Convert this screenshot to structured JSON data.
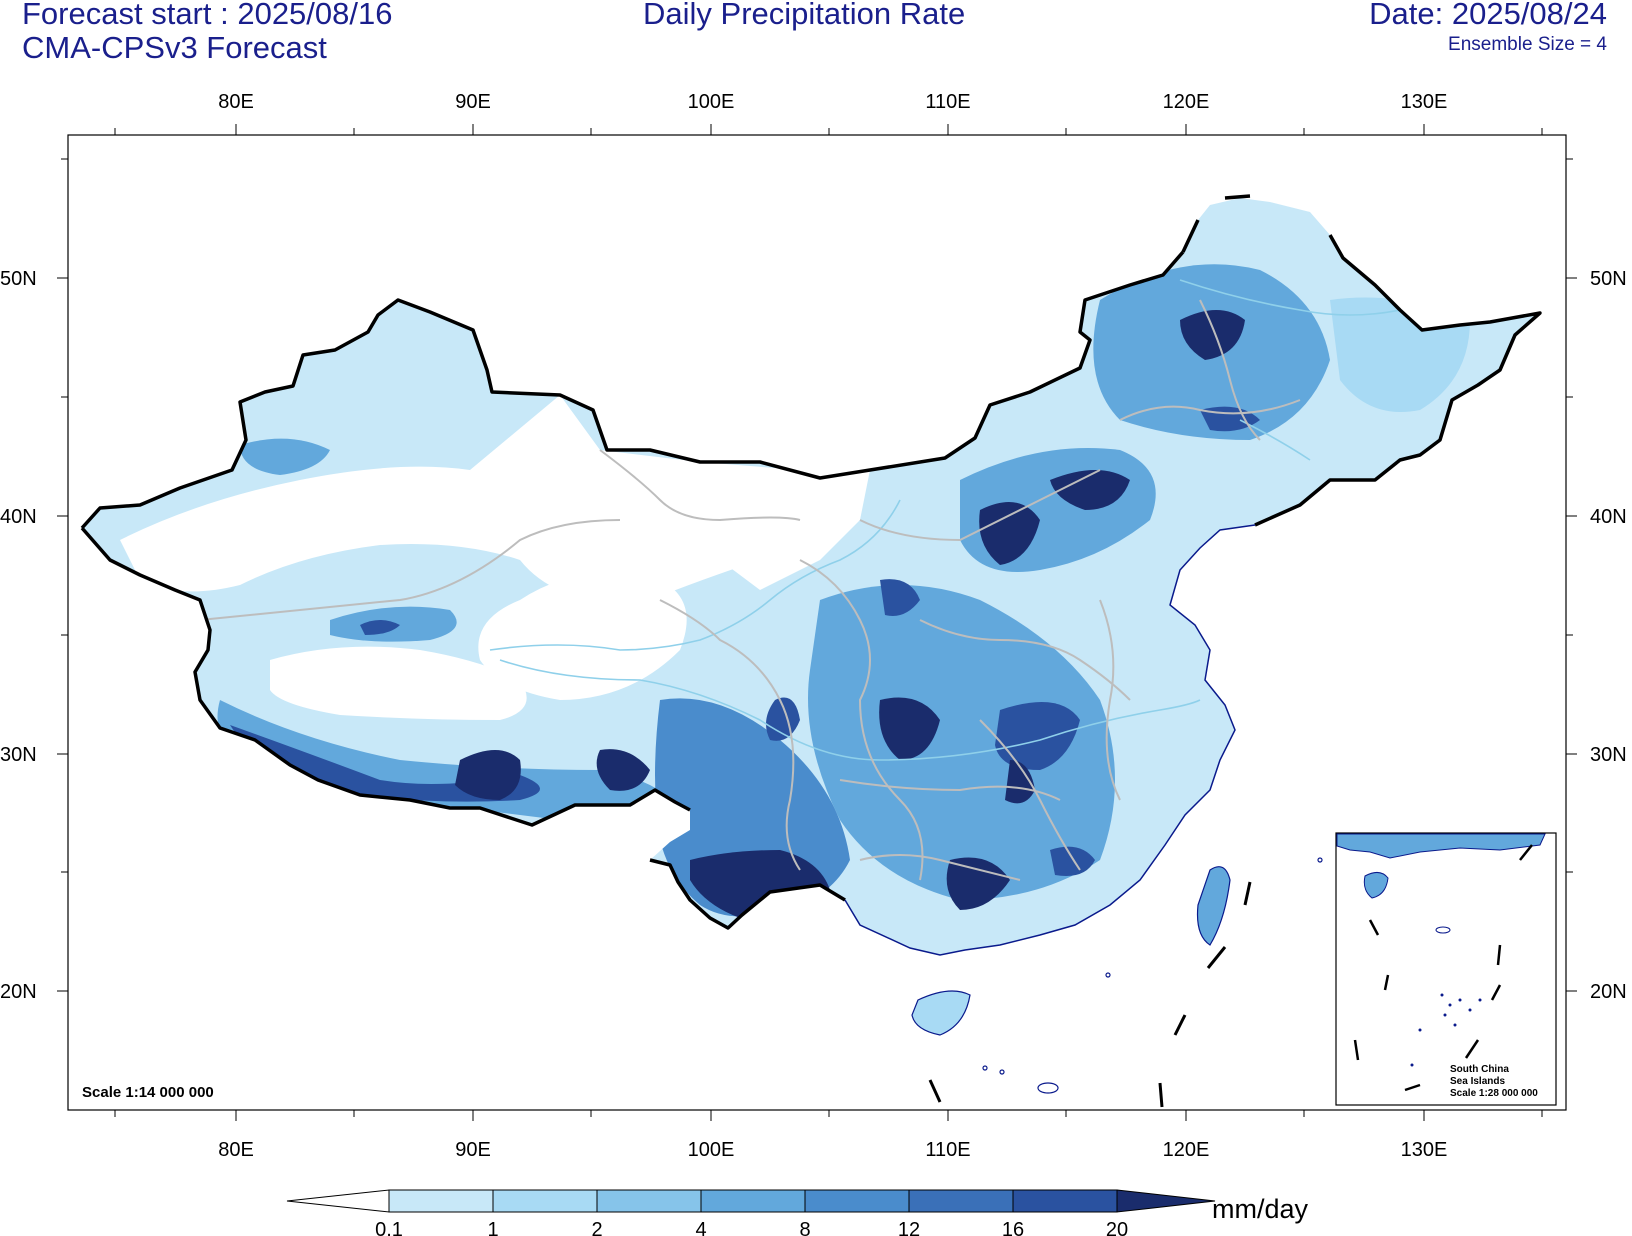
{
  "header": {
    "forecast_start": "Forecast start : 2025/08/16",
    "model": "CMA-CPSv3 Forecast",
    "title": "Daily Precipitation Rate",
    "date": "Date: 2025/08/24",
    "ensemble": "Ensemble Size = 4"
  },
  "axes": {
    "lon_labels": [
      "80E",
      "90E",
      "100E",
      "110E",
      "120E",
      "130E"
    ],
    "lat_labels": [
      "50N",
      "40N",
      "30N",
      "20N"
    ]
  },
  "scale_note": "Scale 1:14 000 000",
  "inset": {
    "line1": "South China",
    "line2": "Sea Islands",
    "line3": "Scale 1:28 000 000"
  },
  "colorbar": {
    "unit": "mm/day",
    "levels": [
      "0.1",
      "1",
      "2",
      "4",
      "8",
      "12",
      "16",
      "20"
    ],
    "colors": [
      "#c8e8f8",
      "#a8daf4",
      "#86c4ea",
      "#62a8dc",
      "#4a8ccc",
      "#3a70b8",
      "#2a52a0",
      "#1a2c6c"
    ]
  },
  "colors": {
    "title_text": "#1a1f8c",
    "border": "#000000",
    "province_lines": "#bdbdbd",
    "rivers": "#8fd0ea",
    "coast": "#0a1a8c"
  }
}
